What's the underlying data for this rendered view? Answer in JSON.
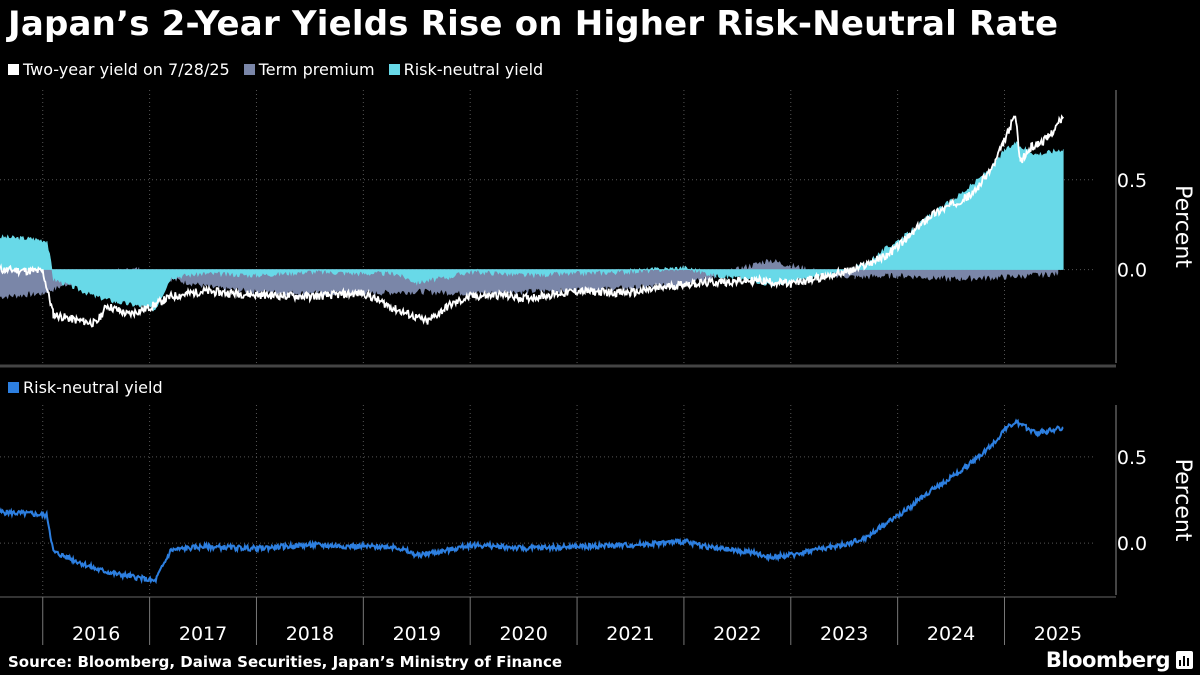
{
  "title": "Japan’s 2-Year Yields Rise on Higher Risk-Neutral Rate",
  "source": "Source: Bloomberg, Daiwa Securities, Japan’s Ministry of Finance",
  "brand": "Bloomberg",
  "colors": {
    "two_year": "#ffffff",
    "term_premium": "#7a86a8",
    "risk_neutral_top": "#68d9e8",
    "risk_neutral_bottom": "#2d7fe0",
    "gridline": "#555555"
  },
  "chart_data": [
    {
      "type": "area",
      "legend": [
        {
          "label": "Two-year yield on 7/28/25",
          "color": "#ffffff"
        },
        {
          "label": "Term premium",
          "color": "#7a86a8"
        },
        {
          "label": "Risk-neutral yield",
          "color": "#68d9e8"
        }
      ],
      "ylabel": "Percent",
      "yticks": [
        {
          "v": 0.5,
          "label": "0.5"
        },
        {
          "v": 0.0,
          "label": "0.0"
        }
      ],
      "ylim": [
        -0.52,
        1.0
      ],
      "x_years": [
        2015.6,
        2025.8
      ],
      "series": [
        {
          "name": "Risk-neutral yield",
          "x": [
            2015.6,
            2015.9,
            2016.04,
            2016.1,
            2016.3,
            2016.5,
            2016.7,
            2016.9,
            2017.05,
            2017.2,
            2017.5,
            2018.0,
            2018.5,
            2019.0,
            2019.3,
            2019.5,
            2019.8,
            2020.0,
            2020.3,
            2020.5,
            2021.0,
            2021.5,
            2022.0,
            2022.3,
            2022.6,
            2022.8,
            2023.0,
            2023.2,
            2023.5,
            2023.7,
            2023.9,
            2024.1,
            2024.3,
            2024.5,
            2024.7,
            2024.9,
            2025.0,
            2025.1,
            2025.2,
            2025.3,
            2025.4,
            2025.55
          ],
          "values": [
            0.18,
            0.17,
            0.16,
            -0.05,
            -0.1,
            -0.15,
            -0.18,
            -0.2,
            -0.22,
            -0.04,
            -0.02,
            -0.03,
            -0.01,
            -0.02,
            -0.02,
            -0.07,
            -0.04,
            -0.01,
            -0.02,
            -0.03,
            -0.02,
            -0.01,
            0.01,
            -0.03,
            -0.05,
            -0.08,
            -0.07,
            -0.04,
            -0.01,
            0.03,
            0.12,
            0.2,
            0.3,
            0.38,
            0.47,
            0.58,
            0.66,
            0.7,
            0.67,
            0.64,
            0.65,
            0.67
          ]
        },
        {
          "name": "Term premium",
          "x": [
            2015.6,
            2016.0,
            2016.3,
            2016.6,
            2016.9,
            2017.2,
            2017.6,
            2018.0,
            2018.5,
            2019.0,
            2019.5,
            2020.0,
            2020.5,
            2021.0,
            2021.5,
            2022.0,
            2022.4,
            2022.8,
            2023.0,
            2023.3,
            2023.6,
            2024.0,
            2024.5,
            2025.0,
            2025.5
          ],
          "values": [
            -0.15,
            -0.13,
            -0.06,
            -0.02,
            0.0,
            -0.05,
            -0.1,
            -0.12,
            -0.13,
            -0.13,
            -0.12,
            -0.13,
            -0.12,
            -0.11,
            -0.1,
            -0.08,
            -0.02,
            0.05,
            0.02,
            -0.02,
            -0.04,
            -0.03,
            -0.05,
            -0.04,
            -0.02
          ]
        },
        {
          "name": "Two-year yield on 7/28/25",
          "x": [
            2015.6,
            2016.0,
            2016.1,
            2016.3,
            2016.5,
            2016.6,
            2016.8,
            2017.0,
            2017.2,
            2017.5,
            2018.0,
            2018.5,
            2019.0,
            2019.3,
            2019.6,
            2019.8,
            2020.0,
            2020.3,
            2020.5,
            2021.0,
            2021.5,
            2022.0,
            2022.3,
            2022.7,
            2023.0,
            2023.3,
            2023.6,
            2023.9,
            2024.1,
            2024.3,
            2024.5,
            2024.7,
            2024.9,
            2025.0,
            2025.1,
            2025.15,
            2025.25,
            2025.4,
            2025.55
          ],
          "values": [
            0.0,
            -0.01,
            -0.25,
            -0.28,
            -0.3,
            -0.2,
            -0.25,
            -0.21,
            -0.15,
            -0.12,
            -0.14,
            -0.15,
            -0.13,
            -0.22,
            -0.29,
            -0.2,
            -0.15,
            -0.14,
            -0.16,
            -0.12,
            -0.13,
            -0.08,
            -0.07,
            -0.06,
            -0.08,
            -0.04,
            0.0,
            0.08,
            0.18,
            0.3,
            0.36,
            0.42,
            0.58,
            0.72,
            0.86,
            0.6,
            0.68,
            0.73,
            0.85
          ]
        }
      ]
    },
    {
      "type": "line",
      "legend": [
        {
          "label": "Risk-neutral yield",
          "color": "#2d7fe0"
        }
      ],
      "ylabel": "Percent",
      "yticks": [
        {
          "v": 0.5,
          "label": "0.5"
        },
        {
          "v": 0.0,
          "label": "0.0"
        }
      ],
      "ylim": [
        -0.3,
        0.8
      ],
      "x_years": [
        2015.6,
        2025.8
      ],
      "x_tick_labels": [
        "2016",
        "2017",
        "2018",
        "2019",
        "2020",
        "2021",
        "2022",
        "2023",
        "2024",
        "2025"
      ],
      "series": [
        {
          "name": "Risk-neutral yield",
          "x": [
            2015.6,
            2015.9,
            2016.04,
            2016.1,
            2016.3,
            2016.5,
            2016.7,
            2016.9,
            2017.05,
            2017.2,
            2017.5,
            2018.0,
            2018.5,
            2019.0,
            2019.3,
            2019.5,
            2019.8,
            2020.0,
            2020.3,
            2020.5,
            2021.0,
            2021.5,
            2022.0,
            2022.3,
            2022.6,
            2022.8,
            2023.0,
            2023.2,
            2023.5,
            2023.7,
            2023.9,
            2024.1,
            2024.3,
            2024.5,
            2024.7,
            2024.9,
            2025.0,
            2025.1,
            2025.2,
            2025.3,
            2025.4,
            2025.55
          ],
          "values": [
            0.18,
            0.17,
            0.16,
            -0.05,
            -0.1,
            -0.15,
            -0.18,
            -0.2,
            -0.22,
            -0.04,
            -0.02,
            -0.03,
            -0.01,
            -0.02,
            -0.02,
            -0.07,
            -0.04,
            -0.01,
            -0.02,
            -0.03,
            -0.02,
            -0.01,
            0.01,
            -0.03,
            -0.05,
            -0.08,
            -0.07,
            -0.04,
            -0.01,
            0.03,
            0.12,
            0.2,
            0.3,
            0.38,
            0.47,
            0.58,
            0.66,
            0.7,
            0.67,
            0.64,
            0.65,
            0.67
          ]
        }
      ]
    }
  ]
}
